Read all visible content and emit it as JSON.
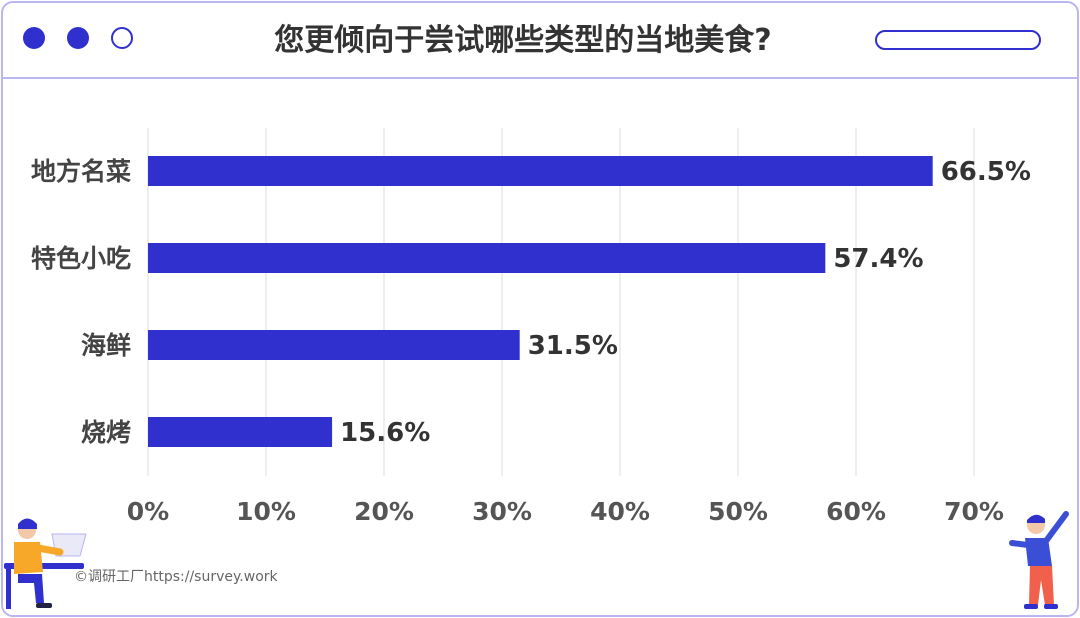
{
  "title": "您更倾向于尝试哪些类型的当地美食?",
  "credit": "©调研工厂https://survey.work",
  "colors": {
    "bar": "#3030cf",
    "border": "#b9b6f2",
    "grid": "#dddddd"
  },
  "chart_data": {
    "type": "bar",
    "orientation": "horizontal",
    "title": "您更倾向于尝试哪些类型的当地美食?",
    "categories": [
      "地方名菜",
      "特色小吃",
      "海鲜",
      "烧烤"
    ],
    "values": [
      66.5,
      57.4,
      31.5,
      15.6
    ],
    "value_labels": [
      "66.5%",
      "57.4%",
      "31.5%",
      "15.6%"
    ],
    "xlim": [
      0,
      70
    ],
    "xticks": [
      "0%",
      "10%",
      "20%",
      "30%",
      "40%",
      "50%",
      "60%",
      "70%"
    ],
    "grid": true,
    "legend": "none"
  }
}
